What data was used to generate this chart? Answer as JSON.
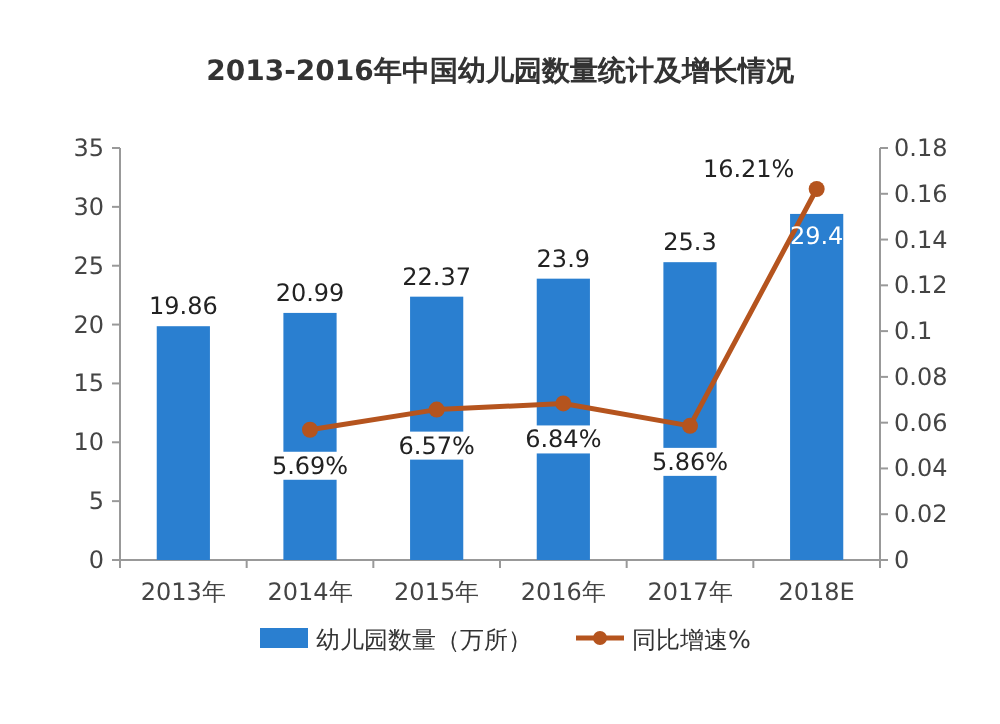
{
  "chart_data": {
    "type": "bar",
    "title": "2013-2016年中国幼儿园数量统计及增长情况",
    "categories": [
      "2013年",
      "2014年",
      "2015年",
      "2016年",
      "2017年",
      "2018E"
    ],
    "series": [
      {
        "name": "幼儿园数量（万所）",
        "type": "bar",
        "color": "#2a7fd0",
        "values": [
          19.86,
          20.99,
          22.37,
          23.9,
          25.3,
          29.4
        ]
      },
      {
        "name": "同比增速%",
        "type": "line",
        "axis": "y2",
        "color": "#b5541e",
        "marker": "circle",
        "values": [
          null,
          0.0569,
          0.0657,
          0.0684,
          0.0586,
          0.1621
        ],
        "value_labels": [
          null,
          "5.69%",
          "6.57%",
          "6.84%",
          "5.86%",
          "16.21%"
        ]
      }
    ],
    "data_labels": true,
    "ylim": [
      0,
      35
    ],
    "yticks": [
      0,
      5,
      10,
      15,
      20,
      25,
      30,
      35
    ],
    "y2lim": [
      0,
      0.18
    ],
    "y2ticks": [
      0,
      0.02,
      0.04,
      0.06,
      0.08,
      0.1,
      0.12,
      0.14,
      0.16,
      0.18
    ],
    "legend": "bottom",
    "grid": false
  }
}
